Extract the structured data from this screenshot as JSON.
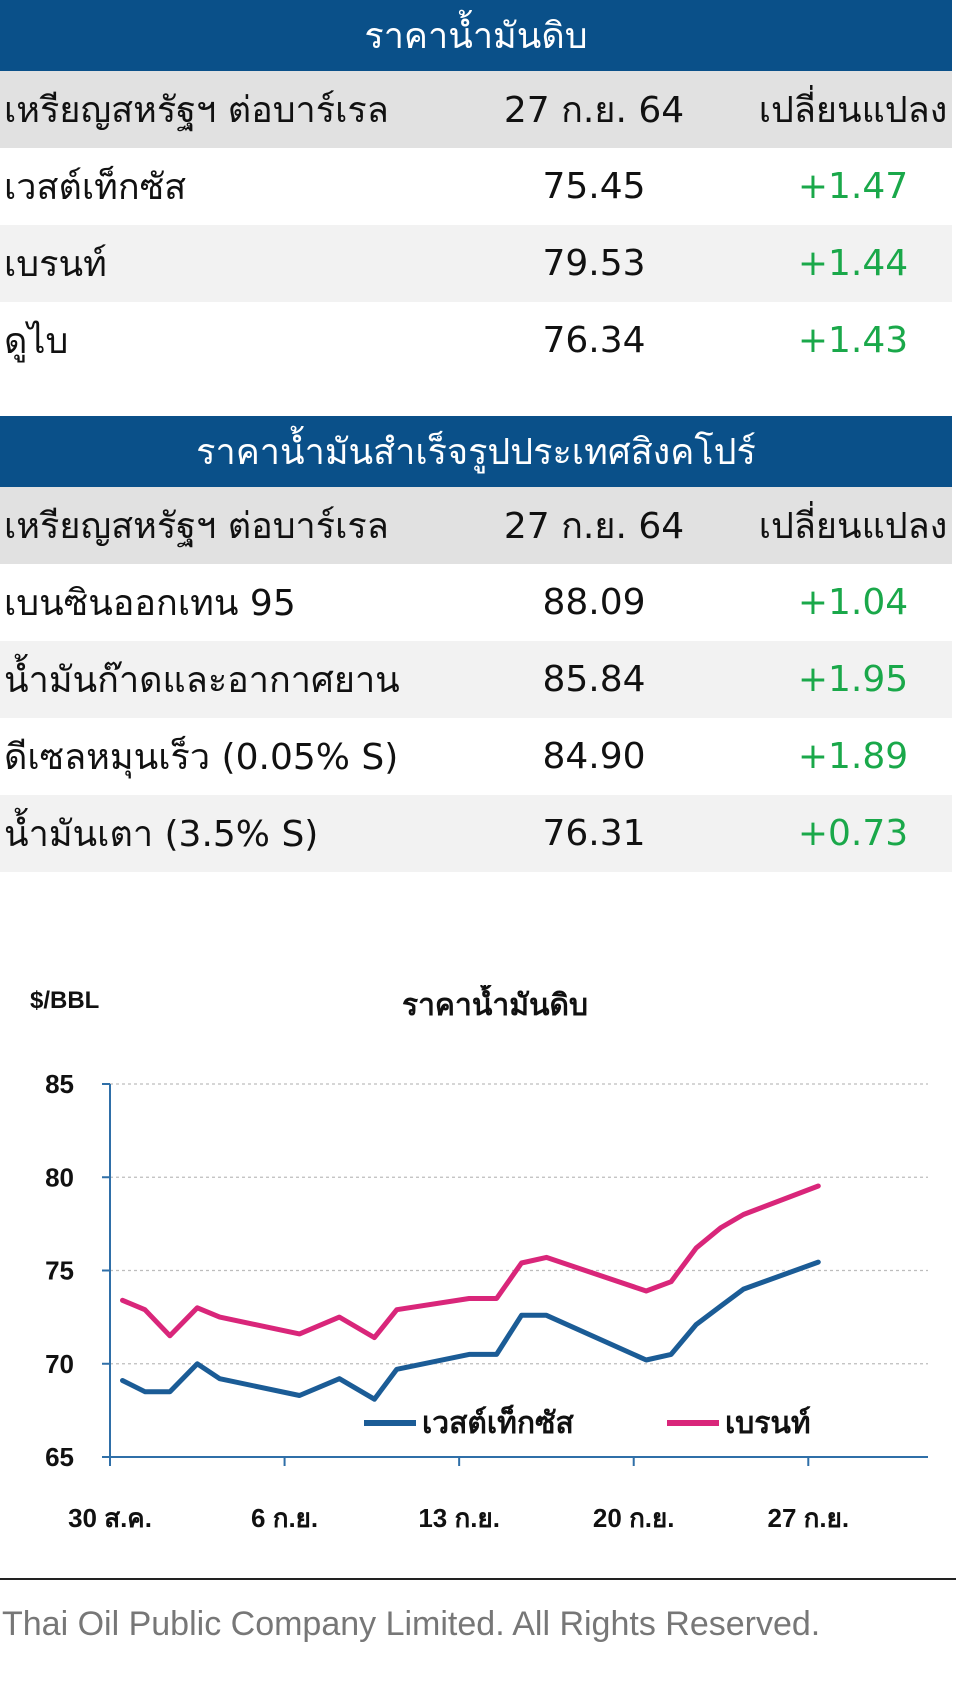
{
  "crude_table": {
    "title": "ราคาน้ำมันดิบ",
    "columns": [
      "เหรียญสหรัฐฯ ต่อบาร์เรล",
      "27 ก.ย. 64",
      "เปลี่ยนแปลง"
    ],
    "rows": [
      {
        "name": "เวสต์เท็กซัส",
        "price": "75.45",
        "change": "+1.47"
      },
      {
        "name": "เบรนท์",
        "price": "79.53",
        "change": "+1.44"
      },
      {
        "name": "ดูไบ",
        "price": "76.34",
        "change": "+1.43"
      }
    ]
  },
  "product_table": {
    "title": "ราคาน้ำมันสำเร็จรูปประเทศสิงคโปร์",
    "columns": [
      "เหรียญสหรัฐฯ ต่อบาร์เรล",
      "27 ก.ย. 64",
      "เปลี่ยนแปลง"
    ],
    "rows": [
      {
        "name": "เบนซินออกเทน 95",
        "price": "88.09",
        "change": "+1.04"
      },
      {
        "name": "น้ำมันก๊าดและอากาศยาน",
        "price": "85.84",
        "change": "+1.95"
      },
      {
        "name": "ดีเซลหมุนเร็ว (0.05% S)",
        "price": "84.90",
        "change": "+1.89"
      },
      {
        "name": "น้ำมันเตา (3.5% S)",
        "price": "76.31",
        "change": "+0.73"
      }
    ]
  },
  "chart_data": {
    "type": "line",
    "title": "ราคาน้ำมันดิบ",
    "ylabel": "$/BBL",
    "ylim": [
      65,
      85
    ],
    "yticks": [
      65,
      70,
      75,
      80,
      85
    ],
    "xlim": [
      0,
      32.8
    ],
    "xticks": [
      {
        "x": 0,
        "label": "30 ส.ค."
      },
      {
        "x": 7,
        "label": "6 ก.ย."
      },
      {
        "x": 14,
        "label": "13 ก.ย."
      },
      {
        "x": 21,
        "label": "20 ก.ย."
      },
      {
        "x": 28,
        "label": "27 ก.ย."
      }
    ],
    "grid": true,
    "legend": "bottom-right",
    "series": [
      {
        "name": "เวสต์เท็กซัส",
        "color": "#1b5c96",
        "x": [
          0.5,
          1.4,
          2.4,
          3.5,
          4.4,
          7.6,
          9.2,
          10.6,
          11.5,
          14.4,
          15.5,
          16.5,
          17.5,
          21.5,
          22.5,
          23.5,
          24.5,
          25.4,
          28.4
        ],
        "y": [
          69.1,
          68.5,
          68.5,
          70.0,
          69.2,
          68.3,
          69.2,
          68.1,
          69.7,
          70.5,
          70.5,
          72.6,
          72.6,
          70.2,
          70.5,
          72.1,
          73.1,
          74.0,
          75.45
        ]
      },
      {
        "name": "เบรนท์",
        "color": "#d9267a",
        "x": [
          0.5,
          1.4,
          2.4,
          3.5,
          4.4,
          7.6,
          9.2,
          10.6,
          11.5,
          14.4,
          15.5,
          16.5,
          17.5,
          21.5,
          22.5,
          23.5,
          24.5,
          25.4,
          28.4
        ],
        "y": [
          73.4,
          72.9,
          71.5,
          73.0,
          72.5,
          71.6,
          72.5,
          71.4,
          72.9,
          73.5,
          73.5,
          75.4,
          75.7,
          73.9,
          74.4,
          76.2,
          77.3,
          78.0,
          79.53
        ]
      }
    ]
  },
  "footer": "Thai Oil Public Company Limited. All Rights Reserved."
}
